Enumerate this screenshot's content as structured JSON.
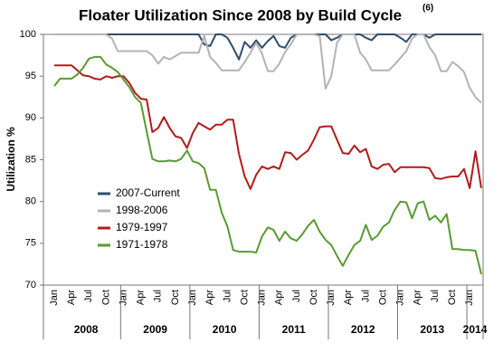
{
  "chart_data": {
    "type": "line",
    "title": "Floater Utilization Since 2008 by Build Cycle",
    "title_note": "(6)",
    "y_label": "Utilization %",
    "categories": [
      "Jan",
      null,
      null,
      "Apr",
      null,
      null,
      "Jul",
      null,
      null,
      "Oct",
      null,
      null,
      "Jan",
      null,
      null,
      "Apr",
      null,
      null,
      "Jul",
      null,
      null,
      "Oct",
      null,
      null,
      "Jan",
      null,
      null,
      "Apr",
      null,
      null,
      "Jul",
      null,
      null,
      "Oct",
      null,
      null,
      "Jan",
      null,
      null,
      "Apr",
      null,
      null,
      "Jul",
      null,
      null,
      "Oct",
      null,
      null,
      "Jan",
      null,
      null,
      "Apr",
      null,
      null,
      "Jul",
      null,
      null,
      "Oct",
      null,
      null,
      "Jan",
      null,
      null,
      "Apr",
      null,
      null,
      "Jul",
      null,
      null,
      "Oct",
      null,
      null,
      "Jan",
      null,
      null
    ],
    "year_groups": [
      {
        "label": "2008",
        "months": 12
      },
      {
        "label": "2009",
        "months": 12
      },
      {
        "label": "2010",
        "months": 12
      },
      {
        "label": "2011",
        "months": 12
      },
      {
        "label": "2012",
        "months": 12
      },
      {
        "label": "2013",
        "months": 12
      },
      {
        "label": "2014",
        "months": 3
      }
    ],
    "series": [
      {
        "name": "2007-Current",
        "color": "#2e4d6e",
        "values": [
          100,
          100,
          100,
          100,
          100,
          100,
          100,
          100,
          100,
          100,
          100,
          100,
          100,
          100,
          100,
          100,
          100,
          100,
          100,
          100,
          100,
          100,
          100,
          100,
          100,
          100,
          98.8,
          98.6,
          100,
          100,
          99.6,
          98.4,
          97.0,
          99.1,
          98.4,
          99.3,
          98.4,
          99.2,
          99.8,
          98.6,
          98.4,
          99.6,
          100,
          100,
          100,
          100,
          100,
          100,
          99.3,
          99.6,
          100,
          100,
          100,
          100,
          99.6,
          99.3,
          100,
          100,
          100,
          100,
          99.6,
          99.1,
          100,
          100,
          100,
          99.6,
          100,
          100,
          100,
          100,
          100,
          100,
          100,
          100,
          100
        ]
      },
      {
        "name": "1998-2006",
        "color": "#b3b3b3",
        "values": [
          100,
          100,
          100,
          100,
          100,
          100,
          100,
          100,
          100,
          100,
          99.5,
          98.0,
          98,
          98,
          98,
          98,
          98,
          97.5,
          96.5,
          97.3,
          97.0,
          97.4,
          97.8,
          97.8,
          97.8,
          97.8,
          99.8,
          97.3,
          96.6,
          95.7,
          95.7,
          95.7,
          95.7,
          96.7,
          97.8,
          99.0,
          97.7,
          95.6,
          95.6,
          96.5,
          97.9,
          98.8,
          100,
          100,
          100,
          100,
          99.8,
          93.5,
          95.0,
          99.0,
          100,
          100,
          100,
          97.8,
          97.0,
          95.7,
          95.7,
          95.7,
          95.7,
          96.4,
          97.2,
          98.0,
          99.5,
          100,
          100,
          98.5,
          97.5,
          95.6,
          95.6,
          96.7,
          96.2,
          95.5,
          93.6,
          92.5,
          91.8
        ]
      },
      {
        "name": "1979-1997",
        "color": "#b01c1c",
        "values": [
          96.3,
          96.3,
          96.3,
          96.3,
          95.7,
          95.1,
          95.0,
          94.7,
          94.6,
          95.0,
          94.8,
          95.0,
          95.0,
          94.2,
          93.0,
          92.3,
          92.2,
          88.3,
          88.8,
          90.1,
          88.8,
          87.8,
          87.6,
          86.4,
          88.2,
          89.4,
          89.0,
          88.6,
          89.2,
          89.2,
          89.8,
          89.8,
          85.7,
          83.0,
          81.5,
          83.2,
          84.2,
          83.9,
          84.2,
          83.9,
          85.9,
          85.8,
          85.0,
          85.6,
          86.1,
          87.4,
          88.9,
          89.0,
          89.0,
          87.4,
          85.8,
          85.7,
          86.7,
          85.9,
          86.3,
          84.2,
          83.9,
          84.4,
          84.5,
          83.5,
          84.1,
          84.1,
          84.1,
          84.1,
          84.1,
          84.0,
          82.8,
          82.7,
          82.9,
          83.0,
          83.0,
          83.9,
          81.6,
          86.0,
          81.6
        ]
      },
      {
        "name": "1971-1978",
        "color": "#5a9a32",
        "values": [
          93.8,
          94.7,
          94.7,
          94.7,
          95.2,
          96.0,
          97.1,
          97.3,
          97.3,
          96.4,
          96.0,
          95.5,
          94.6,
          93.7,
          92.5,
          91.8,
          88.4,
          85.1,
          84.8,
          84.8,
          84.9,
          84.8,
          85.1,
          86.1,
          84.8,
          84.6,
          84.0,
          81.4,
          81.4,
          78.7,
          77.0,
          74.2,
          74.0,
          74.0,
          74.0,
          73.9,
          75.8,
          76.9,
          76.6,
          75.3,
          76.4,
          75.6,
          75.3,
          76.1,
          77.1,
          77.8,
          76.4,
          75.4,
          74.8,
          73.5,
          72.3,
          73.6,
          74.8,
          75.3,
          77.2,
          75.4,
          75.9,
          77.0,
          77.5,
          79.0,
          80.0,
          79.9,
          78.0,
          79.8,
          80.0,
          77.8,
          78.3,
          77.5,
          78.5,
          74.3,
          74.3,
          74.2,
          74.2,
          74.1,
          71.3
        ]
      }
    ],
    "ylim": [
      70,
      100
    ],
    "yticks": [
      70,
      75,
      80,
      85,
      90,
      95,
      100
    ],
    "grid": false,
    "legend": "lower-left"
  }
}
